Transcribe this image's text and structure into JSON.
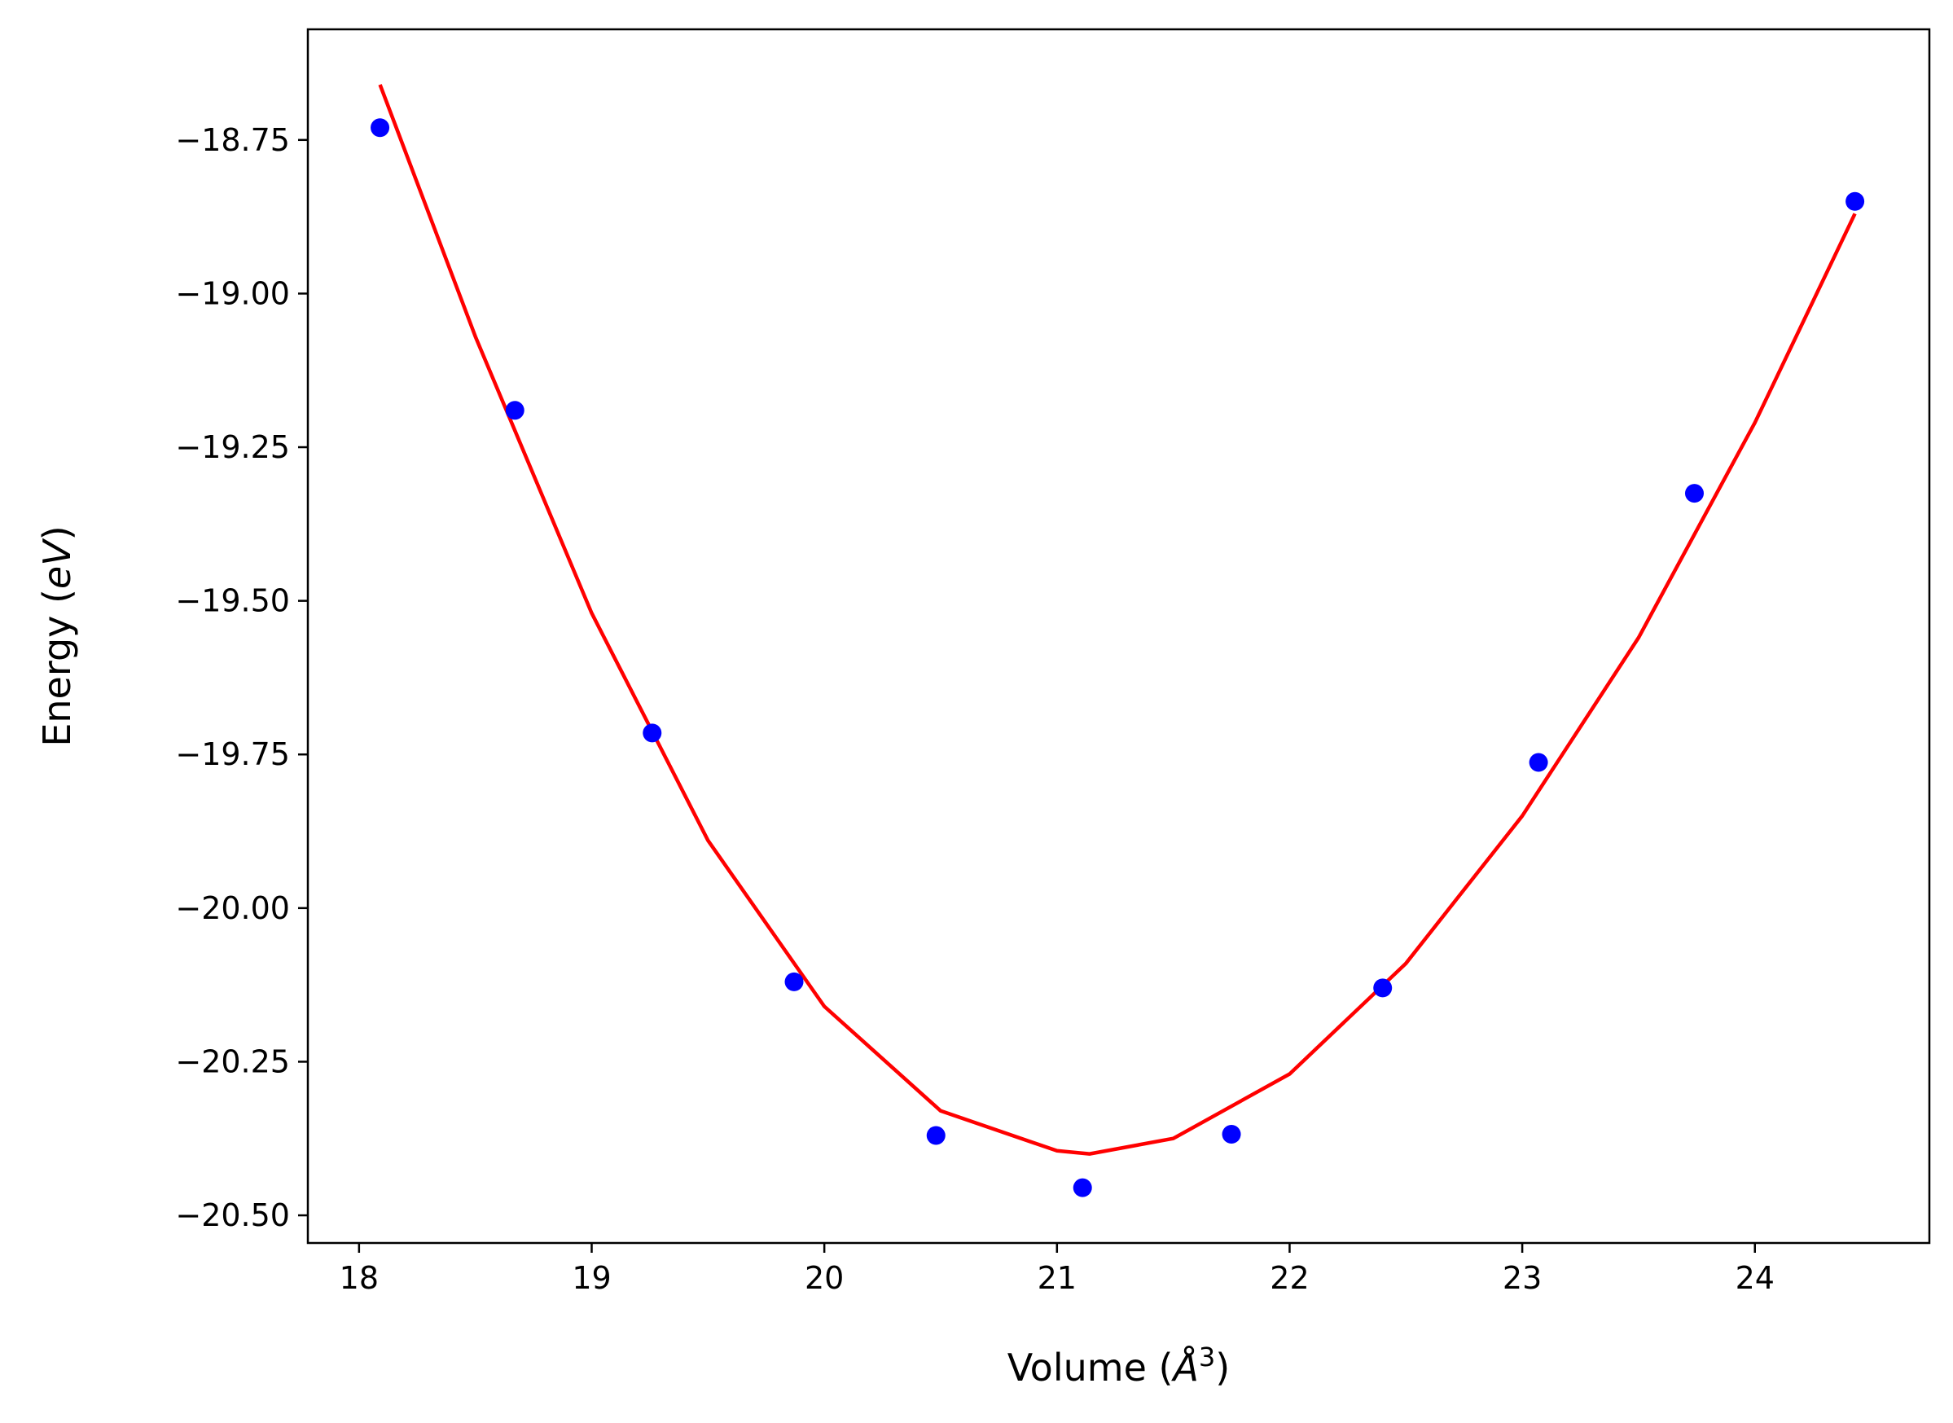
{
  "chart_data": {
    "type": "scatter",
    "title": "",
    "xlabel": {
      "prefix": "Volume (",
      "symbol": "Å",
      "power": "3",
      "suffix": ")"
    },
    "ylabel": {
      "prefix": "Energy (",
      "unit": "eV",
      "suffix": ")"
    },
    "xlim": [
      17.78,
      24.75
    ],
    "ylim": [
      -20.545,
      -18.57
    ],
    "x_ticks": [
      18,
      19,
      20,
      21,
      22,
      23,
      24
    ],
    "x_tick_labels": [
      "18",
      "19",
      "20",
      "21",
      "22",
      "23",
      "24"
    ],
    "y_ticks": [
      -18.75,
      -19.0,
      -19.25,
      -19.5,
      -19.75,
      -20.0,
      -20.25,
      -20.5
    ],
    "y_tick_labels": [
      "−18.75",
      "−19.00",
      "−19.25",
      "−19.50",
      "−19.75",
      "−20.00",
      "−20.25",
      "−20.50"
    ],
    "grid": false,
    "legend": "none",
    "series": [
      {
        "kind": "points",
        "color": "#0000ff",
        "x": [
          18.09,
          18.67,
          19.26,
          19.87,
          20.48,
          21.11,
          21.75,
          22.4,
          23.07,
          23.74,
          24.43
        ],
        "y": [
          -18.73,
          -19.19,
          -19.715,
          -20.12,
          -20.37,
          -20.455,
          -20.368,
          -20.13,
          -19.763,
          -19.325,
          -18.85
        ]
      },
      {
        "kind": "fit-curve",
        "color": "#ff0000",
        "x": [
          18.09,
          18.5,
          19.0,
          19.5,
          20.0,
          20.5,
          21.0,
          21.14,
          21.5,
          22.0,
          22.5,
          23.0,
          23.5,
          24.0,
          24.43
        ],
        "y": [
          -18.66,
          -19.07,
          -19.52,
          -19.89,
          -20.16,
          -20.33,
          -20.395,
          -20.4,
          -20.375,
          -20.27,
          -20.09,
          -19.85,
          -19.56,
          -19.21,
          -18.87
        ]
      }
    ]
  }
}
